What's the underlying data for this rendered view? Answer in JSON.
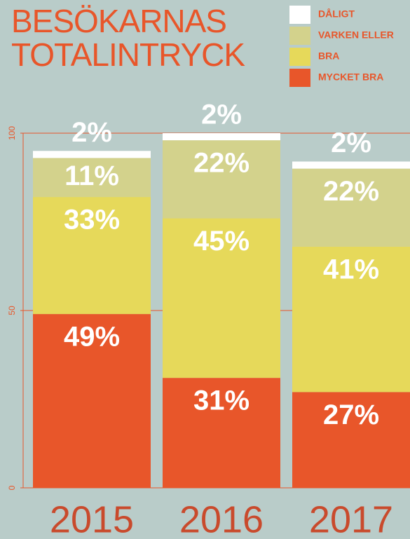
{
  "chart_data": {
    "type": "stacked-bar",
    "title": [
      "BESÖKARNAS",
      "TOTALINTRYCK"
    ],
    "categories": [
      "2015",
      "2016",
      "2017"
    ],
    "series": [
      {
        "name": "MYCKET BRA",
        "color": "#e8562a",
        "values": [
          49,
          31,
          27
        ],
        "value_labels": [
          "49%",
          "31%",
          "27%"
        ]
      },
      {
        "name": "BRA",
        "color": "#e6d95a",
        "values": [
          33,
          45,
          41
        ],
        "value_labels": [
          "33%",
          "45%",
          "41%"
        ]
      },
      {
        "name": "VARKEN ELLER",
        "color": "#d3d28c",
        "values": [
          11,
          22,
          22
        ],
        "value_labels": [
          "11%",
          "22%",
          "22%"
        ]
      },
      {
        "name": "DÅLIGT",
        "color": "#ffffff",
        "values": [
          2,
          2,
          2
        ],
        "value_labels": [
          "2%",
          "2%",
          "2%"
        ]
      }
    ],
    "ylim": [
      0,
      100
    ],
    "yticks": [
      0,
      50,
      100
    ],
    "grid": true,
    "axis_color": "#e8562a",
    "legend": "top-right"
  }
}
